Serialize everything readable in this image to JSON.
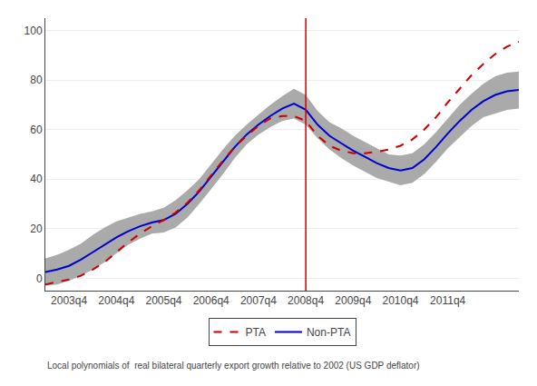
{
  "chart_data": {
    "type": "line",
    "footnote": "Local polynomials of  real bilateral quarterly export growth relative to 2002 (US GDP deflator)",
    "x": [
      0,
      1,
      2,
      3,
      4,
      5,
      6,
      7,
      8,
      9,
      10,
      11,
      12,
      13,
      14,
      15,
      16,
      17,
      18,
      19,
      20,
      21,
      22,
      23,
      24,
      25,
      26,
      27,
      28,
      29,
      30,
      31,
      32,
      33,
      34,
      35,
      36,
      37,
      38,
      39,
      40
    ],
    "series": [
      {
        "name": "Non-PTA",
        "color": "#0000cc",
        "line_style": "solid",
        "values": [
          2.5,
          3.5,
          5.0,
          7.5,
          10.5,
          13.5,
          16.5,
          19.0,
          21.0,
          22.5,
          23.5,
          26.0,
          30.0,
          35.0,
          41.0,
          47.0,
          53.0,
          58.0,
          62.0,
          65.5,
          68.5,
          70.5,
          68.0,
          62.0,
          57.5,
          54.5,
          51.5,
          49.0,
          46.5,
          44.5,
          43.5,
          44.5,
          48.0,
          53.0,
          58.5,
          63.5,
          68.0,
          71.5,
          74.0,
          75.5,
          76.0
        ],
        "upper": [
          8.0,
          9.5,
          11.5,
          14.0,
          17.5,
          20.5,
          23.0,
          24.5,
          26.0,
          27.0,
          28.5,
          31.5,
          35.5,
          40.0,
          46.0,
          52.0,
          57.5,
          62.0,
          66.0,
          70.0,
          73.5,
          76.5,
          74.0,
          67.5,
          63.0,
          60.5,
          57.5,
          55.0,
          52.5,
          50.0,
          49.5,
          50.5,
          54.0,
          59.0,
          64.5,
          70.0,
          74.5,
          78.5,
          81.5,
          83.0,
          83.5
        ],
        "lower": [
          -3.0,
          -2.5,
          -1.0,
          1.0,
          3.5,
          6.5,
          10.0,
          13.5,
          16.0,
          18.0,
          18.5,
          20.5,
          24.5,
          30.0,
          36.0,
          42.0,
          48.5,
          54.0,
          58.0,
          61.0,
          63.5,
          64.5,
          62.0,
          56.5,
          52.0,
          48.5,
          45.5,
          43.0,
          40.5,
          39.0,
          37.5,
          38.5,
          42.0,
          47.0,
          52.5,
          57.0,
          61.5,
          65.0,
          66.5,
          68.0,
          68.5
        ],
        "band_color": "#aaaaaa"
      },
      {
        "name": "PTA",
        "color": "#cc0000",
        "line_style": "dash",
        "values": [
          -2.5,
          -1.5,
          -0.5,
          1.0,
          3.5,
          6.5,
          10.5,
          14.5,
          18.0,
          21.0,
          23.5,
          26.5,
          30.5,
          35.5,
          41.5,
          47.5,
          53.0,
          57.5,
          61.5,
          64.5,
          65.5,
          65.5,
          63.5,
          57.5,
          53.5,
          51.5,
          50.5,
          50.5,
          51.0,
          52.0,
          53.5,
          56.0,
          60.0,
          65.0,
          71.0,
          76.5,
          82.0,
          86.5,
          90.5,
          93.5,
          95.5
        ]
      }
    ],
    "vlines": [
      {
        "x": 22,
        "color": "#cc0000"
      }
    ],
    "xlim": [
      0,
      40
    ],
    "xticks": [
      {
        "value": 2,
        "label": "2003q4"
      },
      {
        "value": 6,
        "label": "2004q4"
      },
      {
        "value": 10,
        "label": "2005q4"
      },
      {
        "value": 14,
        "label": "2006q4"
      },
      {
        "value": 18,
        "label": "2007q4"
      },
      {
        "value": 22,
        "label": "2008q4"
      },
      {
        "value": 26,
        "label": "2009q4"
      },
      {
        "value": 30,
        "label": "2010q4"
      },
      {
        "value": 34,
        "label": "2011q4"
      }
    ],
    "ylim": [
      -5,
      105
    ],
    "yticks": [
      0,
      20,
      40,
      60,
      80,
      100
    ],
    "grid": "y",
    "legend": "bottom"
  }
}
